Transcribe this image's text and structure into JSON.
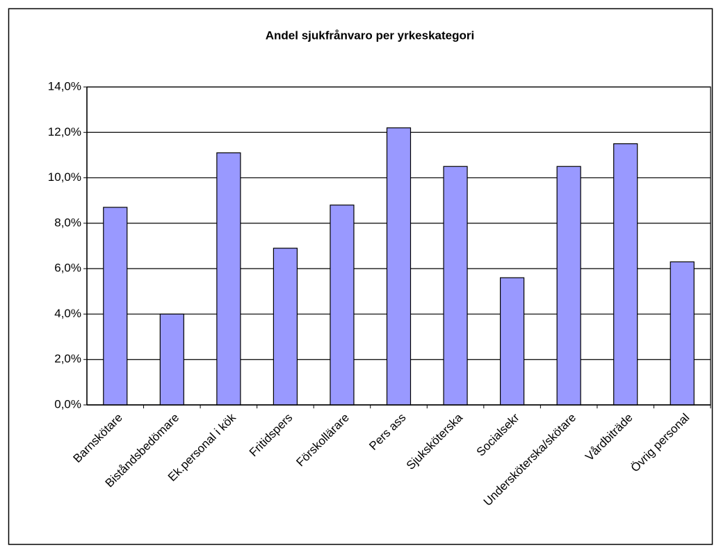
{
  "chart_data": {
    "type": "bar",
    "title": "Andel sjukfrånvaro per yrkeskategori",
    "categories": [
      "Barnskötare",
      "Biståndsbedömare",
      "Ek.personal i kök",
      "Fritidspers",
      "Förskollärare",
      "Pers ass",
      "Sjuksköterska",
      "Socialsekr",
      "Undersköterska/skötare",
      "Vårdbiträde",
      "Övrig personal"
    ],
    "values": [
      8.7,
      4.0,
      11.1,
      6.9,
      8.8,
      12.2,
      10.5,
      5.6,
      10.5,
      11.5,
      6.3
    ],
    "color": "#9999ff",
    "ylim": [
      0,
      14
    ],
    "yticks": [
      {
        "value": 0,
        "label": "0,0%"
      },
      {
        "value": 2,
        "label": "2,0%"
      },
      {
        "value": 4,
        "label": "4,0%"
      },
      {
        "value": 6,
        "label": "6,0%"
      },
      {
        "value": 8,
        "label": "8,0%"
      },
      {
        "value": 10,
        "label": "10,0%"
      },
      {
        "value": 12,
        "label": "12,0%"
      },
      {
        "value": 14,
        "label": "14,0%"
      }
    ],
    "grid": true
  }
}
